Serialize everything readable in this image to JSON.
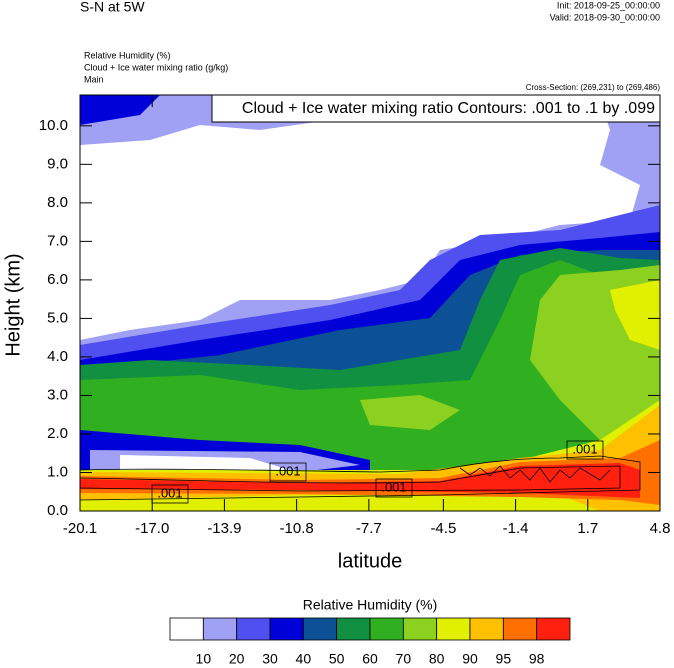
{
  "chart_data": {
    "type": "contour",
    "title": "S-N at 5W",
    "init": "Init: 2018-09-25_00:00:00",
    "valid": "Valid: 2018-09-30_00:00:00",
    "fields": [
      "Relative Humidity   (%)",
      "Cloud + Ice water mixing ratio   (g/kg)",
      "Main"
    ],
    "cross_section": "Cross-Section: (269,231) to (269,486)",
    "contour_note": "Cloud + Ice water mixing ratio Contours: .001 to .1 by .099",
    "contour_labels": [
      ".001",
      ".001",
      ".001",
      ".001"
    ],
    "xlabel": "latitude",
    "ylabel": "Height (km)",
    "xlim": [
      -20.1,
      4.8
    ],
    "xticks": [
      -20.1,
      {
        "value": -17,
        "label": "-17.0"
      },
      -13.9,
      -10.8,
      -7.7,
      -4.5,
      -1.4,
      1.7,
      4.8
    ],
    "ylim": [
      0,
      10.8
    ],
    "yticks": [
      {
        "value": 0,
        "label": "0.0"
      },
      {
        "value": 1,
        "label": "1.0"
      },
      {
        "value": 2,
        "label": "2.0"
      },
      {
        "value": 3,
        "label": "3.0"
      },
      {
        "value": 4,
        "label": "4.0"
      },
      {
        "value": 5,
        "label": "5.0"
      },
      {
        "value": 6,
        "label": "6.0"
      },
      {
        "value": 7,
        "label": "7.0"
      },
      {
        "value": 8,
        "label": "8.0"
      },
      {
        "value": 9,
        "label": "9.0"
      },
      {
        "value": 10,
        "label": "10.0"
      }
    ],
    "colorbar_title": "Relative Humidity  (%)",
    "levels": [
      10,
      20,
      30,
      40,
      50,
      60,
      70,
      80,
      90,
      95,
      98
    ],
    "colors": [
      "#ffffff",
      "#a0a0f5",
      "#5050f0",
      "#0000d8",
      "#0c5096",
      "#109040",
      "#30b020",
      "#8cd020",
      "#e0f000",
      "#ffc000",
      "#ff7000",
      "#ff2010"
    ]
  }
}
